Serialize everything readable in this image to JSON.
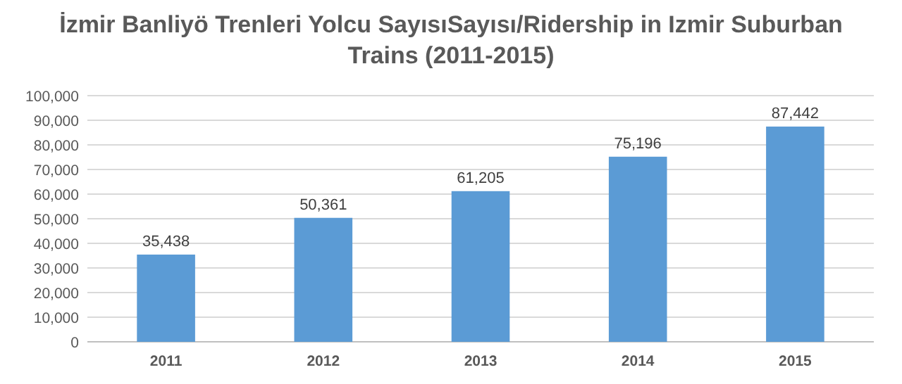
{
  "chart_data": {
    "type": "bar",
    "title": "İzmir Banliyö Trenleri Yolcu SayısıSayısı/Ridership in Izmir Suburban Trains (2011-2015)",
    "categories": [
      "2011",
      "2012",
      "2013",
      "2014",
      "2015"
    ],
    "values": [
      35438,
      50361,
      61205,
      75196,
      87442
    ],
    "value_labels": [
      "35,438",
      "50,361",
      "61,205",
      "75,196",
      "87,442"
    ],
    "color": "#5b9bd5",
    "ylim": [
      0,
      100000
    ],
    "yticks": [
      0,
      {
        "value": 10000,
        "label": "10,000"
      },
      {
        "value": 20000,
        "label": "20,000"
      },
      {
        "value": 30000,
        "label": "30,000"
      },
      {
        "value": 40000,
        "label": "40,000"
      },
      {
        "value": 50000,
        "label": "50,000"
      },
      {
        "value": 60000,
        "label": "60,000"
      },
      {
        "value": 70000,
        "label": "70,000"
      },
      {
        "value": 80000,
        "label": "80,000"
      },
      {
        "value": 90000,
        "label": "90,000"
      },
      {
        "value": 100000,
        "label": "100,000"
      }
    ],
    "grid": true
  }
}
